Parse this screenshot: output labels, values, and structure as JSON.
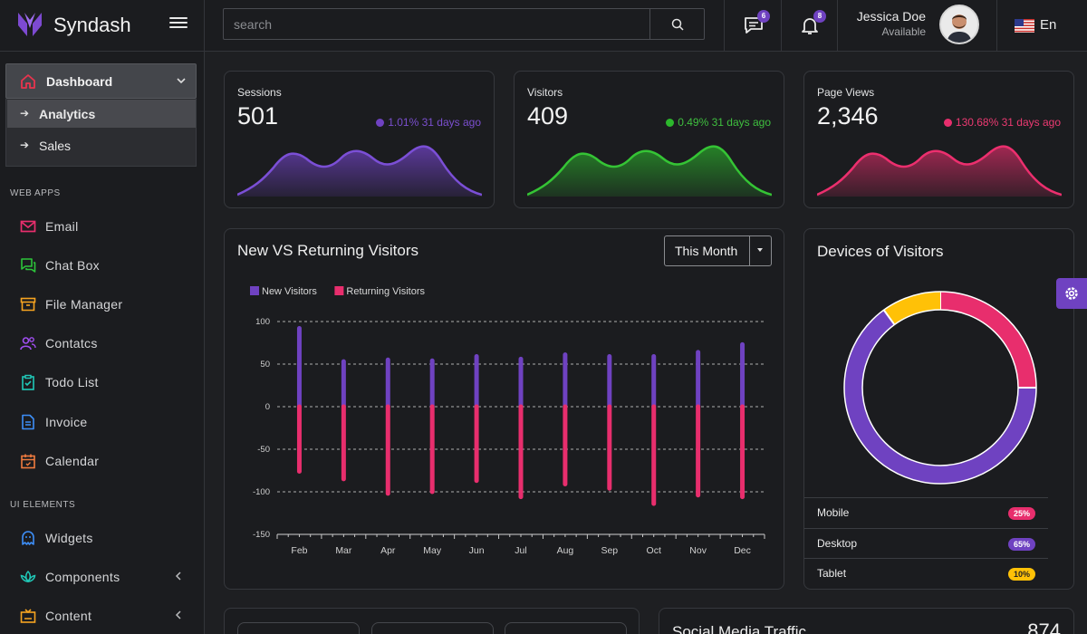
{
  "brand": {
    "name": "Syndash"
  },
  "search": {
    "placeholder": "search"
  },
  "topbar": {
    "messages_count": "6",
    "notifications_count": "8",
    "user_name": "Jessica Doe",
    "user_status": "Available",
    "language": "En"
  },
  "sidebar": {
    "dashboard_label": "Dashboard",
    "sub_items": [
      {
        "label": "Analytics",
        "active": true
      },
      {
        "label": "Sales",
        "active": false
      }
    ],
    "section_web_apps": "WEB APPS",
    "web_apps": [
      {
        "label": "Email",
        "icon": "envelope-icon",
        "color": "#e82e6d"
      },
      {
        "label": "Chat Box",
        "icon": "chat-icon",
        "color": "#2cc43a"
      },
      {
        "label": "File Manager",
        "icon": "archive-icon",
        "color": "#f7a420"
      },
      {
        "label": "Contatcs",
        "icon": "contacts-icon",
        "color": "#a04ef0"
      },
      {
        "label": "Todo List",
        "icon": "clipboard-icon",
        "color": "#20c9b8"
      },
      {
        "label": "Invoice",
        "icon": "invoice-icon",
        "color": "#3d8ef7"
      },
      {
        "label": "Calendar",
        "icon": "calendar-icon",
        "color": "#f07b3f"
      }
    ],
    "section_ui_elements": "UI ELEMENTS",
    "ui_elements": [
      {
        "label": "Widgets",
        "icon": "ghost-icon",
        "color": "#3d8ef7"
      },
      {
        "label": "Components",
        "icon": "lotus-icon",
        "color": "#20c9b8"
      },
      {
        "label": "Content",
        "icon": "tv-icon",
        "color": "#f7a420"
      }
    ]
  },
  "stats": [
    {
      "label": "Sessions",
      "value": "501",
      "delta": "1.01% 31 days ago",
      "color": "#6f42c1",
      "up": true
    },
    {
      "label": "Visitors",
      "value": "409",
      "delta": "0.49% 31 days ago",
      "color": "#2cb72c",
      "up": true
    },
    {
      "label": "Page Views",
      "value": "2,346",
      "delta": "130.68% 31 days ago",
      "color": "#e82e6d",
      "up": false
    }
  ],
  "visitors_chart": {
    "title": "New VS Returning Visitors",
    "period_button": "This Month"
  },
  "devices": {
    "title": "Devices of Visitors",
    "rows": [
      {
        "name": "Mobile",
        "percent": "25%",
        "color": "#e82e6d"
      },
      {
        "name": "Desktop",
        "percent": "65%",
        "color": "#6f42c1"
      },
      {
        "name": "Tablet",
        "percent": "10%",
        "color": "#ffc107"
      }
    ]
  },
  "social": {
    "title": "Social Media Traffic",
    "value": "874"
  },
  "chart_data": [
    {
      "type": "bar",
      "categories": [
        "Feb",
        "Mar",
        "Apr",
        "May",
        "Jun",
        "Jul",
        "Aug",
        "Sep",
        "Oct",
        "Nov",
        "Dec"
      ],
      "series": [
        {
          "name": "New Visitors",
          "color": "#6f42c1",
          "values": [
            92,
            53,
            55,
            54,
            59,
            56,
            61,
            59,
            59,
            64,
            73
          ]
        },
        {
          "name": "Returning Visitors",
          "color": "#e82e6d",
          "values": [
            -76,
            -85,
            -102,
            -100,
            -87,
            -106,
            -91,
            -96,
            -114,
            -104,
            -106
          ]
        }
      ],
      "ylim": [
        -150,
        100
      ],
      "yticks": [
        100,
        50,
        0,
        -50,
        -100,
        -150
      ],
      "legend": "top-left",
      "grid": true
    },
    {
      "type": "pie",
      "donut": true,
      "labels": [
        "Mobile",
        "Desktop",
        "Tablet"
      ],
      "values": [
        25,
        65,
        10
      ],
      "colors": [
        "#e82e6d",
        "#6f42c1",
        "#ffc107"
      ]
    }
  ]
}
